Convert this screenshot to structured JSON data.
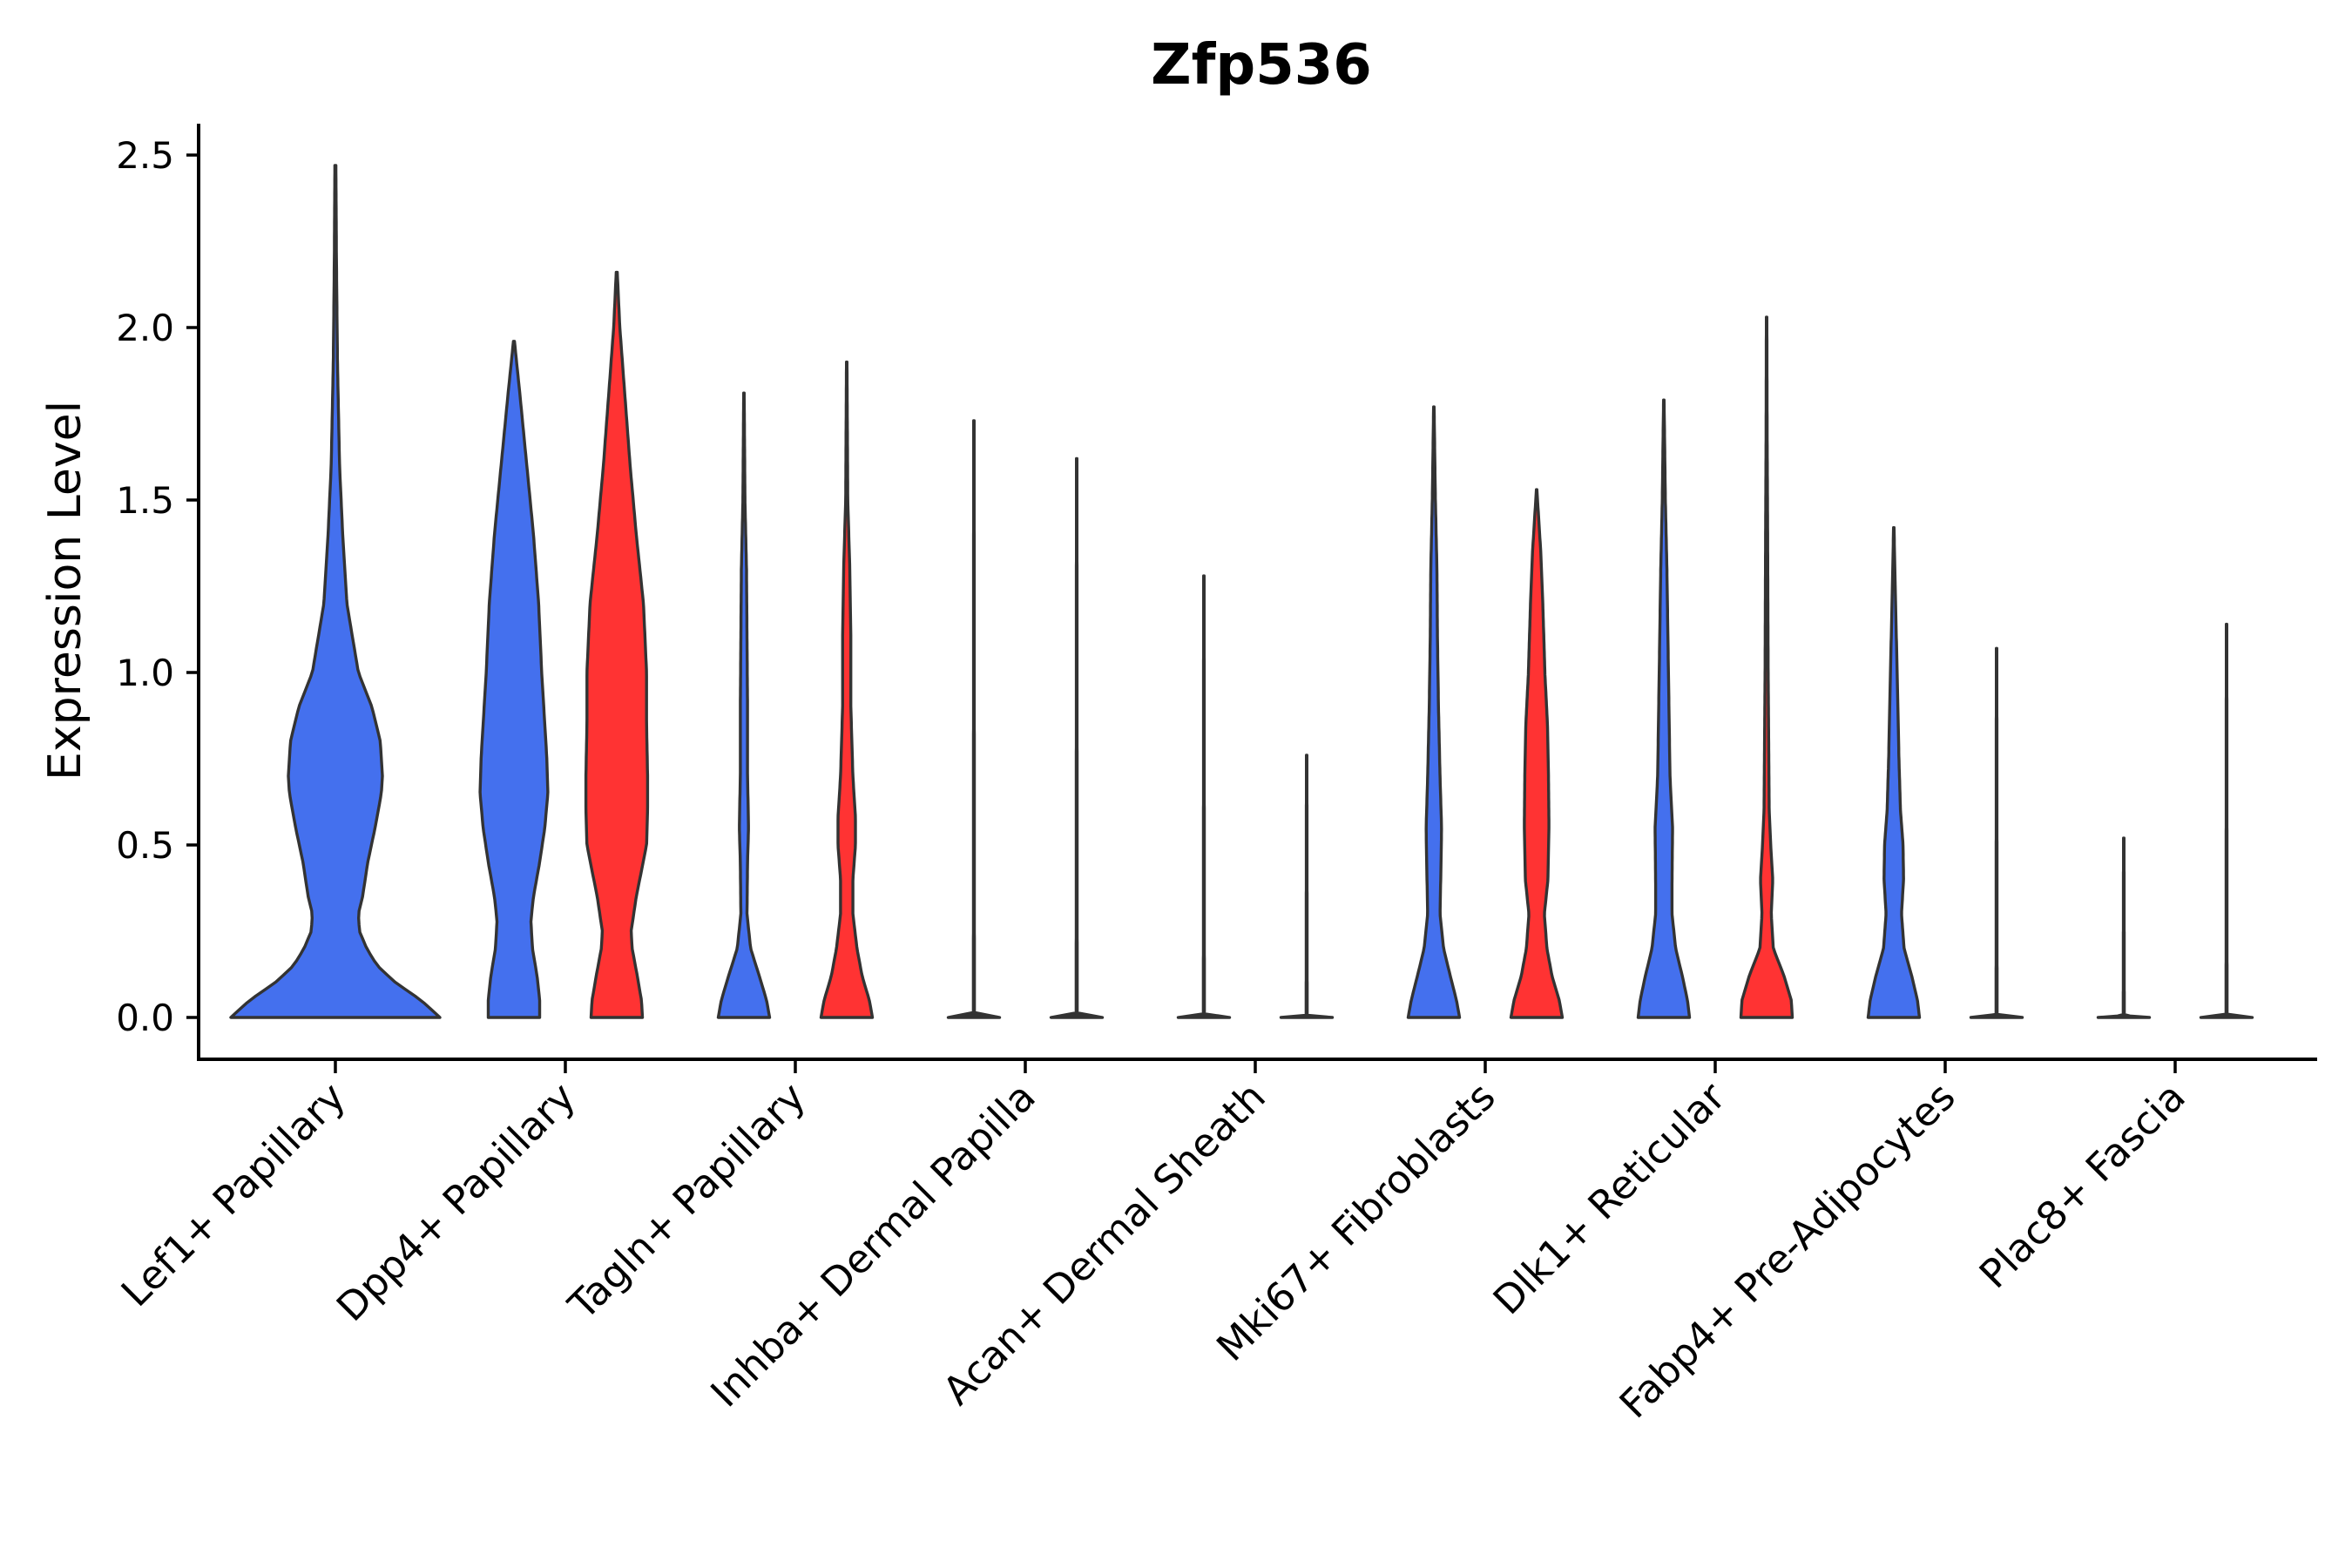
{
  "chart_data": {
    "type": "violin",
    "title": "Zfp536",
    "xlabel": "",
    "ylabel": "Expression Level",
    "ylim": [
      -0.12,
      2.6
    ],
    "yticks": [
      0.0,
      0.5,
      1.0,
      1.5,
      2.0,
      2.5
    ],
    "ytick_labels": [
      "0.0",
      "0.5",
      "1.0",
      "1.5",
      "2.0",
      "2.5"
    ],
    "grid": false,
    "colors": {
      "blue": "#4470EE",
      "red": "#FF3333",
      "none": "#333333"
    },
    "categories": [
      "Lef1+ Papillary",
      "Dpp4+ Papillary",
      "Tagln+ Papillary",
      "Inhba+ Dermal Papilla",
      "Acan+ Dermal Sheath",
      "Mki67+ Fibroblasts",
      "Dlk1+ Reticular",
      "Fabp4+ Pre-Adipocytes",
      "Plac8+ Fascia"
    ],
    "violins": [
      {
        "category": 0,
        "side": "center",
        "color": "blue",
        "max": 2.47,
        "profile": [
          [
            0,
            1
          ],
          [
            0.05,
            0.82
          ],
          [
            0.1,
            0.58
          ],
          [
            0.15,
            0.4
          ],
          [
            0.2,
            0.3
          ],
          [
            0.25,
            0.23
          ],
          [
            0.3,
            0.22
          ],
          [
            0.35,
            0.26
          ],
          [
            0.45,
            0.31
          ],
          [
            0.55,
            0.38
          ],
          [
            0.65,
            0.44
          ],
          [
            0.7,
            0.45
          ],
          [
            0.8,
            0.43
          ],
          [
            0.9,
            0.35
          ],
          [
            1.0,
            0.22
          ],
          [
            1.2,
            0.11
          ],
          [
            1.4,
            0.07
          ],
          [
            1.6,
            0.04
          ],
          [
            1.9,
            0.02
          ],
          [
            2.2,
            0.01
          ],
          [
            2.47,
            0.005
          ]
        ]
      },
      {
        "category": 1,
        "side": "left",
        "color": "blue",
        "max": 1.96,
        "profile": [
          [
            0,
            0.5
          ],
          [
            0.05,
            0.5
          ],
          [
            0.12,
            0.45
          ],
          [
            0.2,
            0.36
          ],
          [
            0.28,
            0.33
          ],
          [
            0.35,
            0.38
          ],
          [
            0.45,
            0.5
          ],
          [
            0.55,
            0.6
          ],
          [
            0.65,
            0.66
          ],
          [
            0.75,
            0.64
          ],
          [
            0.85,
            0.6
          ],
          [
            1.0,
            0.54
          ],
          [
            1.2,
            0.48
          ],
          [
            1.4,
            0.38
          ],
          [
            1.6,
            0.25
          ],
          [
            1.8,
            0.12
          ],
          [
            1.96,
            0.01
          ]
        ]
      },
      {
        "category": 1,
        "side": "right",
        "color": "red",
        "max": 2.16,
        "profile": [
          [
            0,
            0.5
          ],
          [
            0.05,
            0.48
          ],
          [
            0.12,
            0.4
          ],
          [
            0.2,
            0.3
          ],
          [
            0.25,
            0.28
          ],
          [
            0.35,
            0.38
          ],
          [
            0.5,
            0.58
          ],
          [
            0.6,
            0.6
          ],
          [
            0.7,
            0.6
          ],
          [
            0.85,
            0.58
          ],
          [
            1.0,
            0.58
          ],
          [
            1.2,
            0.52
          ],
          [
            1.4,
            0.38
          ],
          [
            1.6,
            0.26
          ],
          [
            1.8,
            0.16
          ],
          [
            2.0,
            0.06
          ],
          [
            2.16,
            0.01
          ]
        ]
      },
      {
        "category": 2,
        "side": "left",
        "color": "blue",
        "max": 1.81,
        "profile": [
          [
            0,
            0.5
          ],
          [
            0.05,
            0.44
          ],
          [
            0.12,
            0.3
          ],
          [
            0.2,
            0.13
          ],
          [
            0.3,
            0.06
          ],
          [
            0.45,
            0.07
          ],
          [
            0.55,
            0.09
          ],
          [
            0.7,
            0.07
          ],
          [
            0.9,
            0.07
          ],
          [
            1.1,
            0.06
          ],
          [
            1.3,
            0.05
          ],
          [
            1.5,
            0.02
          ],
          [
            1.81,
            0.005
          ]
        ]
      },
      {
        "category": 2,
        "side": "right",
        "color": "red",
        "max": 1.9,
        "profile": [
          [
            0,
            0.5
          ],
          [
            0.05,
            0.44
          ],
          [
            0.12,
            0.3
          ],
          [
            0.2,
            0.2
          ],
          [
            0.3,
            0.12
          ],
          [
            0.4,
            0.12
          ],
          [
            0.5,
            0.17
          ],
          [
            0.58,
            0.17
          ],
          [
            0.7,
            0.12
          ],
          [
            0.9,
            0.08
          ],
          [
            1.1,
            0.08
          ],
          [
            1.3,
            0.06
          ],
          [
            1.5,
            0.02
          ],
          [
            1.9,
            0.005
          ]
        ]
      },
      {
        "category": 3,
        "side": "left",
        "color": "none",
        "max": 1.73,
        "profile": [
          [
            0,
            0.5
          ],
          [
            0.002,
            0.5
          ],
          [
            0.005,
            0.01
          ],
          [
            1.73,
            0.005
          ]
        ]
      },
      {
        "category": 3,
        "side": "right",
        "color": "none",
        "max": 1.62,
        "profile": [
          [
            0,
            0.5
          ],
          [
            0.002,
            0.5
          ],
          [
            0.005,
            0.01
          ],
          [
            1.62,
            0.005
          ]
        ]
      },
      {
        "category": 4,
        "side": "left",
        "color": "none",
        "max": 1.28,
        "profile": [
          [
            0,
            0.5
          ],
          [
            0.002,
            0.5
          ],
          [
            0.005,
            0.01
          ],
          [
            1.28,
            0.005
          ]
        ]
      },
      {
        "category": 4,
        "side": "right",
        "color": "none",
        "max": 0.76,
        "profile": [
          [
            0,
            0.5
          ],
          [
            0.002,
            0.5
          ],
          [
            0.005,
            0.01
          ],
          [
            0.76,
            0.005
          ]
        ]
      },
      {
        "category": 5,
        "side": "left",
        "color": "blue",
        "max": 1.77,
        "profile": [
          [
            0,
            0.5
          ],
          [
            0.05,
            0.44
          ],
          [
            0.12,
            0.32
          ],
          [
            0.2,
            0.19
          ],
          [
            0.3,
            0.12
          ],
          [
            0.45,
            0.14
          ],
          [
            0.55,
            0.15
          ],
          [
            0.7,
            0.12
          ],
          [
            0.9,
            0.09
          ],
          [
            1.1,
            0.07
          ],
          [
            1.3,
            0.06
          ],
          [
            1.5,
            0.03
          ],
          [
            1.77,
            0.005
          ]
        ]
      },
      {
        "category": 5,
        "side": "right",
        "color": "red",
        "max": 1.53,
        "profile": [
          [
            0,
            0.5
          ],
          [
            0.05,
            0.44
          ],
          [
            0.12,
            0.3
          ],
          [
            0.2,
            0.2
          ],
          [
            0.3,
            0.15
          ],
          [
            0.4,
            0.22
          ],
          [
            0.55,
            0.24
          ],
          [
            0.7,
            0.23
          ],
          [
            0.85,
            0.21
          ],
          [
            1.0,
            0.16
          ],
          [
            1.2,
            0.12
          ],
          [
            1.35,
            0.08
          ],
          [
            1.53,
            0.005
          ]
        ]
      },
      {
        "category": 6,
        "side": "left",
        "color": "blue",
        "max": 1.79,
        "profile": [
          [
            0,
            0.5
          ],
          [
            0.05,
            0.46
          ],
          [
            0.12,
            0.36
          ],
          [
            0.2,
            0.23
          ],
          [
            0.3,
            0.16
          ],
          [
            0.4,
            0.16
          ],
          [
            0.55,
            0.17
          ],
          [
            0.7,
            0.12
          ],
          [
            0.9,
            0.1
          ],
          [
            1.1,
            0.08
          ],
          [
            1.3,
            0.06
          ],
          [
            1.5,
            0.03
          ],
          [
            1.79,
            0.005
          ]
        ]
      },
      {
        "category": 6,
        "side": "right",
        "color": "red",
        "max": 2.03,
        "profile": [
          [
            0,
            0.5
          ],
          [
            0.05,
            0.48
          ],
          [
            0.12,
            0.34
          ],
          [
            0.2,
            0.13
          ],
          [
            0.3,
            0.09
          ],
          [
            0.4,
            0.12
          ],
          [
            0.5,
            0.08
          ],
          [
            0.6,
            0.05
          ],
          [
            0.8,
            0.04
          ],
          [
            1.0,
            0.03
          ],
          [
            1.4,
            0.02
          ],
          [
            1.7,
            0.01
          ],
          [
            2.03,
            0.005
          ]
        ]
      },
      {
        "category": 7,
        "side": "left",
        "color": "blue",
        "max": 1.42,
        "profile": [
          [
            0,
            0.5
          ],
          [
            0.05,
            0.46
          ],
          [
            0.12,
            0.35
          ],
          [
            0.2,
            0.2
          ],
          [
            0.3,
            0.15
          ],
          [
            0.4,
            0.19
          ],
          [
            0.5,
            0.18
          ],
          [
            0.6,
            0.13
          ],
          [
            0.75,
            0.1
          ],
          [
            0.9,
            0.08
          ],
          [
            1.1,
            0.05
          ],
          [
            1.3,
            0.02
          ],
          [
            1.42,
            0.005
          ]
        ]
      },
      {
        "category": 7,
        "side": "right",
        "color": "none",
        "max": 1.07,
        "profile": [
          [
            0,
            0.5
          ],
          [
            0.002,
            0.5
          ],
          [
            0.005,
            0.01
          ],
          [
            1.07,
            0.005
          ]
        ]
      },
      {
        "category": 8,
        "side": "left",
        "color": "none",
        "max": 0.52,
        "profile": [
          [
            0,
            0.5
          ],
          [
            0.002,
            0.5
          ],
          [
            0.005,
            0.01
          ],
          [
            0.52,
            0.005
          ]
        ]
      },
      {
        "category": 8,
        "side": "right",
        "color": "none",
        "max": 1.14,
        "profile": [
          [
            0,
            0.5
          ],
          [
            0.002,
            0.5
          ],
          [
            0.005,
            0.01
          ],
          [
            1.14,
            0.005
          ]
        ]
      }
    ]
  }
}
